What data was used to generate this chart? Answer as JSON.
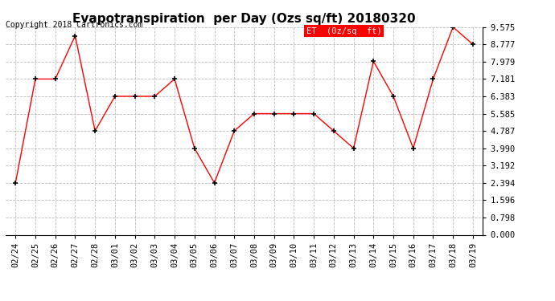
{
  "title": "Evapotranspiration  per Day (Ozs sq/ft) 20180320",
  "copyright": "Copyright 2018 Cartronics.com",
  "legend_label": "ET  (0z/sq  ft)",
  "dates": [
    "02/24",
    "02/25",
    "02/26",
    "02/27",
    "02/28",
    "03/01",
    "03/02",
    "03/03",
    "03/04",
    "03/05",
    "03/06",
    "03/07",
    "03/08",
    "03/09",
    "03/10",
    "03/11",
    "03/12",
    "03/13",
    "03/14",
    "03/15",
    "03/16",
    "03/17",
    "03/18",
    "03/19"
  ],
  "values": [
    2.394,
    7.181,
    7.181,
    9.177,
    4.787,
    6.383,
    6.383,
    6.383,
    7.181,
    3.99,
    2.394,
    4.787,
    5.585,
    5.585,
    5.585,
    5.585,
    4.787,
    3.99,
    8.0,
    6.383,
    3.99,
    7.181,
    9.575,
    8.777
  ],
  "ylim": [
    0.0,
    9.575
  ],
  "yticks": [
    0.0,
    0.798,
    1.596,
    2.394,
    3.192,
    3.99,
    4.787,
    5.585,
    6.383,
    7.181,
    7.979,
    8.777,
    9.575
  ],
  "line_color": "red",
  "marker": "+",
  "marker_color": "#000000",
  "bg_color": "white",
  "grid_color": "#bbbbbb",
  "title_fontsize": 11,
  "copyright_fontsize": 7,
  "tick_fontsize": 7.5,
  "legend_bg": "red",
  "legend_text_color": "white",
  "legend_fontsize": 7.5
}
